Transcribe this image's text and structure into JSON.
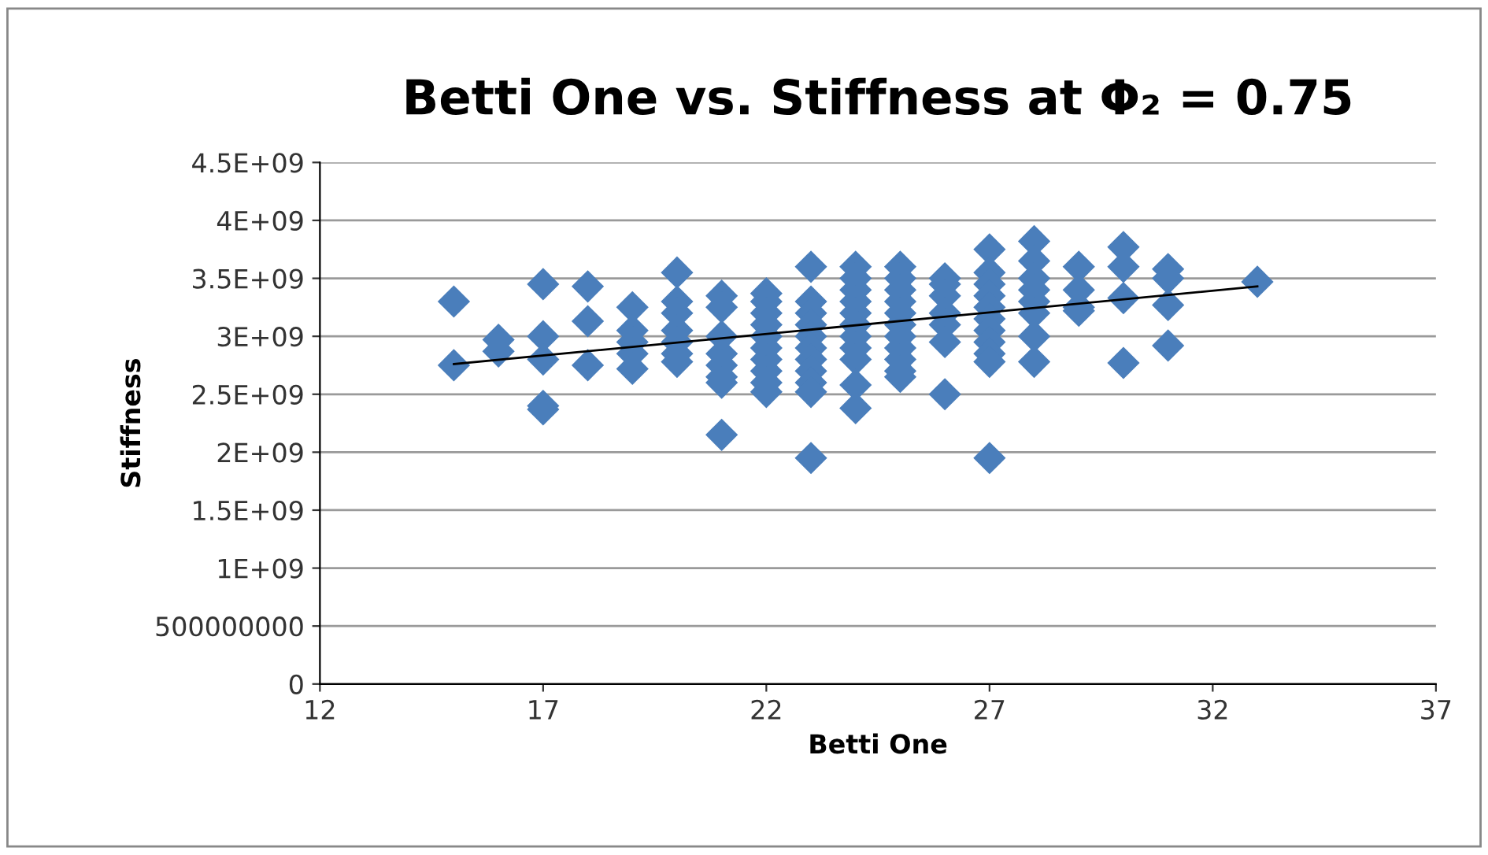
{
  "chart_data": {
    "type": "scatter",
    "title": "Betti One vs. Stiffness at Φ₂ = 0.75",
    "xlabel": "Betti One",
    "ylabel": "Stiffness",
    "xlim": [
      12,
      37
    ],
    "xticks": [
      12,
      17,
      22,
      27,
      32,
      37
    ],
    "ylim": [
      0,
      4500000000
    ],
    "yticks": [
      0,
      {
        "value": 500000000,
        "label": "500000000"
      },
      {
        "value": 1000000000,
        "label": "1E+09"
      },
      {
        "value": 1500000000,
        "label": "1.5E+09"
      },
      {
        "value": 2000000000,
        "label": "2E+09"
      },
      {
        "value": 2500000000,
        "label": "2.5E+09"
      },
      {
        "value": 3000000000,
        "label": "3E+09"
      },
      {
        "value": 3500000000,
        "label": "3.5E+09"
      },
      {
        "value": 4000000000,
        "label": "4E+09"
      },
      {
        "value": 4500000000,
        "label": "4.5E+09"
      }
    ],
    "grid": "y",
    "marker": "diamond",
    "legend": false,
    "series": [
      {
        "color": "#4a7ebb",
        "x": [
          15,
          15,
          16,
          16,
          17,
          17,
          17,
          17,
          17,
          18,
          18,
          18,
          19,
          19,
          19,
          19,
          19,
          20,
          20,
          20,
          20,
          20,
          20,
          20,
          21,
          21,
          21,
          21,
          21,
          21,
          21,
          21,
          22,
          22,
          22,
          22,
          22,
          22,
          22,
          22,
          22,
          22,
          23,
          23,
          23,
          23,
          23,
          23,
          23,
          23,
          23,
          23,
          23,
          24,
          24,
          24,
          24,
          24,
          24,
          24,
          24,
          24,
          24,
          24,
          25,
          25,
          25,
          25,
          25,
          25,
          25,
          25,
          25,
          25,
          25,
          26,
          26,
          26,
          26,
          26,
          26,
          26,
          27,
          27,
          27,
          27,
          27,
          27,
          27,
          27,
          27,
          27,
          27,
          28,
          28,
          28,
          28,
          28,
          28,
          28,
          28,
          29,
          29,
          29,
          29,
          30,
          30,
          30,
          30,
          31,
          31,
          31,
          31,
          33
        ],
        "values": [
          3300000000.0,
          2750000000.0,
          2970000000.0,
          2870000000.0,
          3450000000.0,
          3000000000.0,
          2800000000.0,
          2400000000.0,
          2370000000.0,
          3430000000.0,
          3130000000.0,
          2750000000.0,
          3250000000.0,
          3050000000.0,
          2950000000.0,
          2850000000.0,
          2720000000.0,
          3550000000.0,
          3300000000.0,
          3200000000.0,
          3050000000.0,
          2950000000.0,
          2850000000.0,
          2780000000.0,
          3350000000.0,
          3250000000.0,
          3000000000.0,
          2850000000.0,
          2750000000.0,
          2650000000.0,
          2600000000.0,
          2150000000.0,
          3370000000.0,
          3300000000.0,
          3200000000.0,
          3100000000.0,
          3000000000.0,
          2900000000.0,
          2800000000.0,
          2700000000.0,
          2600000000.0,
          2520000000.0,
          3600000000.0,
          3300000000.0,
          3200000000.0,
          3100000000.0,
          3000000000.0,
          2900000000.0,
          2800000000.0,
          2700000000.0,
          2600000000.0,
          2520000000.0,
          1950000000.0,
          3600000000.0,
          3500000000.0,
          3400000000.0,
          3300000000.0,
          3200000000.0,
          3100000000.0,
          3000000000.0,
          2900000000.0,
          2800000000.0,
          2580000000.0,
          2380000000.0,
          3600000000.0,
          3500000000.0,
          3400000000.0,
          3300000000.0,
          3200000000.0,
          3100000000.0,
          3000000000.0,
          2900000000.0,
          2800000000.0,
          2700000000.0,
          2650000000.0,
          3500000000.0,
          3450000000.0,
          3350000000.0,
          3200000000.0,
          3100000000.0,
          2950000000.0,
          2500000000.0,
          3750000000.0,
          3550000000.0,
          3450000000.0,
          3350000000.0,
          3250000000.0,
          3150000000.0,
          3050000000.0,
          2950000000.0,
          2850000000.0,
          2780000000.0,
          1950000000.0,
          3820000000.0,
          3650000000.0,
          3500000000.0,
          3400000000.0,
          3300000000.0,
          3200000000.0,
          3000000000.0,
          2780000000.0,
          3600000000.0,
          3400000000.0,
          3250000000.0,
          3220000000.0,
          3770000000.0,
          3600000000.0,
          3330000000.0,
          2770000000.0,
          3580000000.0,
          3500000000.0,
          3270000000.0,
          2920000000.0,
          3470000000.0
        ]
      },
      {
        "type": "line",
        "color": "#000000",
        "marker": "none",
        "x": [
          15,
          33
        ],
        "values": [
          2760000000.0,
          3430000000.0
        ]
      }
    ]
  }
}
